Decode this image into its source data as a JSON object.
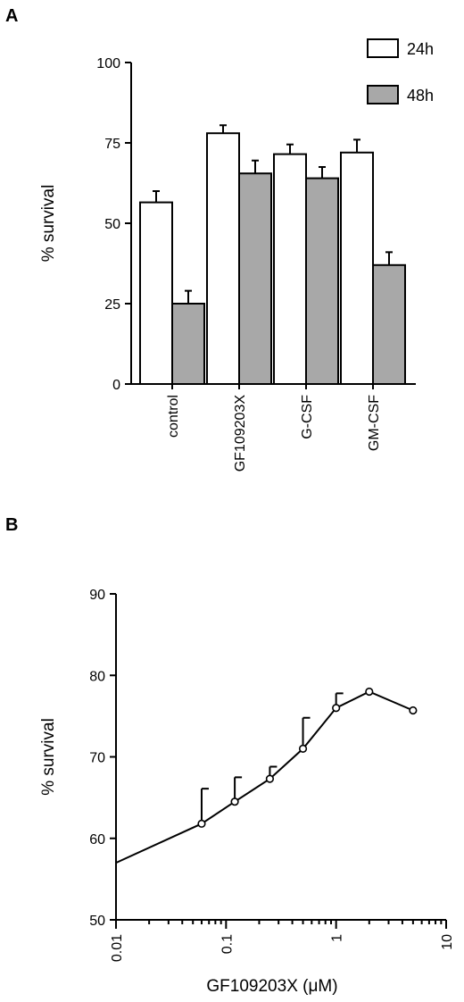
{
  "chart_data": [
    {
      "panel": "A",
      "type": "bar",
      "categories": [
        "control",
        "GF109203X",
        "G-CSF",
        "GM-CSF"
      ],
      "series": [
        {
          "name": "24h",
          "color": "#ffffff",
          "values": [
            56.5,
            78,
            71.5,
            72
          ],
          "errors": [
            3.5,
            2.5,
            3,
            4
          ]
        },
        {
          "name": "48h",
          "color": "#a8a8a8",
          "values": [
            25,
            65.5,
            64,
            37
          ],
          "errors": [
            4,
            4,
            3.5,
            4
          ]
        }
      ],
      "xlabel": "",
      "ylabel": "% survival",
      "ylim": [
        0,
        100
      ],
      "yticks": [
        0,
        25,
        50,
        75,
        100
      ],
      "legend_position": "top-right",
      "grid": false
    },
    {
      "panel": "B",
      "type": "line",
      "x": [
        0.06,
        0.12,
        0.25,
        0.5,
        1,
        2,
        5
      ],
      "y": [
        61.8,
        64.5,
        67.3,
        71,
        76,
        78,
        75.7
      ],
      "errors": [
        4.3,
        3,
        1.5,
        3.8,
        1.8,
        0,
        0
      ],
      "line_start": {
        "x": 0.01,
        "y": 57
      },
      "xscale": "log",
      "xlim": [
        0.01,
        10
      ],
      "xticks": [
        0.01,
        0.1,
        1,
        10
      ],
      "xticklabels": [
        "0.01",
        "0.1",
        "1",
        "10"
      ],
      "xlabel": "GF109203X (μM)",
      "ylabel": "% survival",
      "ylim": [
        50,
        90
      ],
      "yticks": [
        50,
        60,
        70,
        80,
        90
      ],
      "grid": false
    }
  ]
}
